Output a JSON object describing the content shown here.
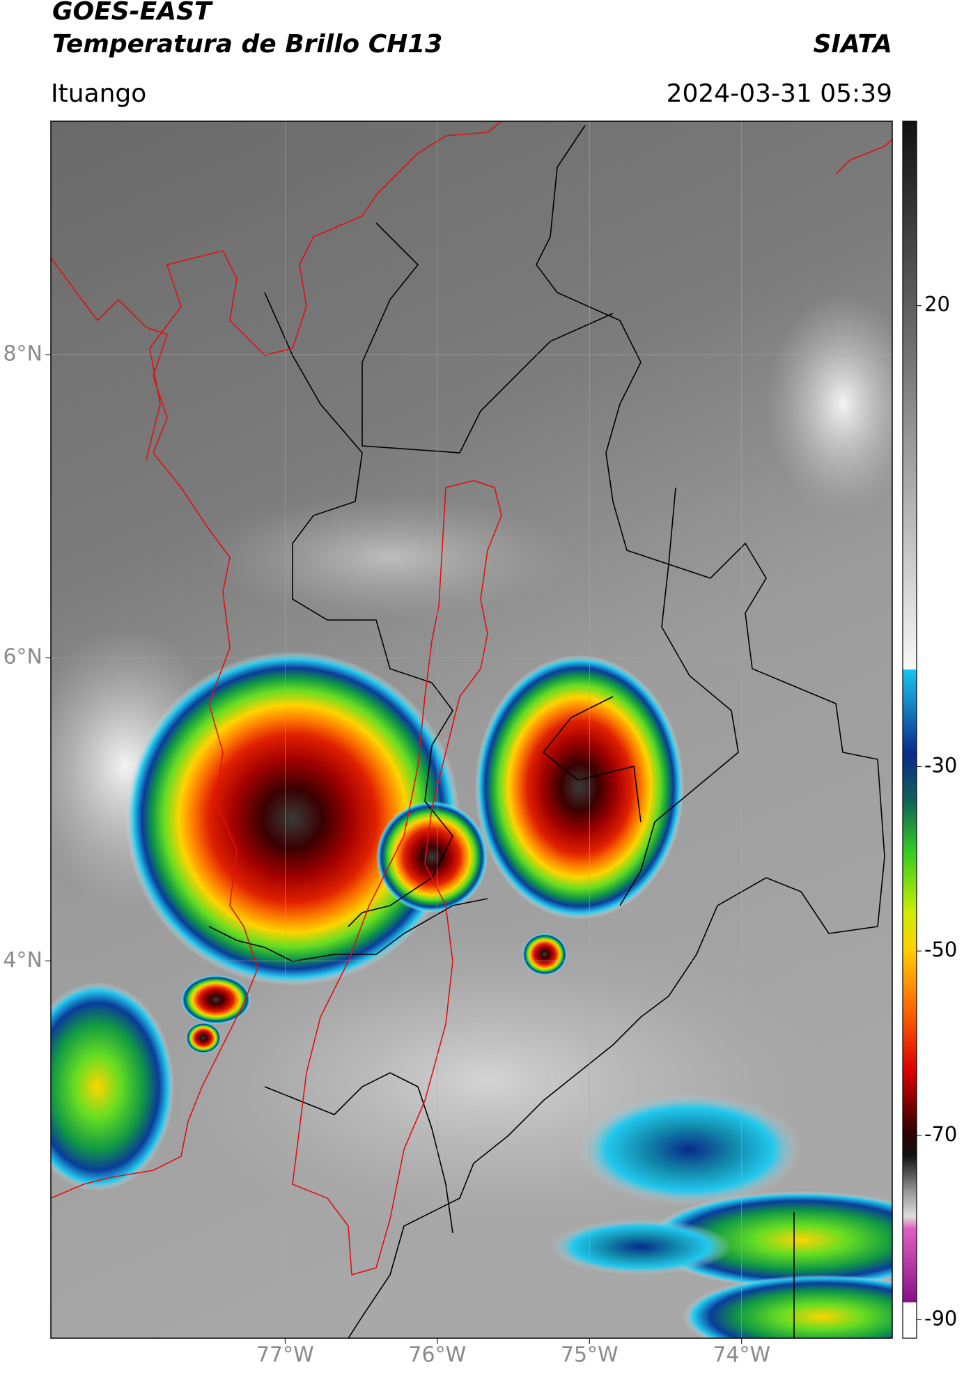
{
  "header": {
    "title_line1": "GOES-EAST",
    "title_line2": "Temperatura de Brillo CH13",
    "source": "SIATA",
    "location": "Ituango",
    "datetime": "2024-03-31 05:39"
  },
  "map": {
    "xlim": [
      -78.54,
      -73.01
    ],
    "ylim": [
      1.51,
      9.54
    ],
    "xticks": [
      {
        "value": -77,
        "label": "77°W"
      },
      {
        "value": -76,
        "label": "76°W"
      },
      {
        "value": -75,
        "label": "75°W"
      },
      {
        "value": -74,
        "label": "74°W"
      }
    ],
    "yticks": [
      {
        "value": 8,
        "label": "8°N"
      },
      {
        "value": 6,
        "label": "6°N"
      },
      {
        "value": 4,
        "label": "4°N"
      }
    ],
    "grid": true
  },
  "colorbar": {
    "clim": [
      -92,
      40
    ],
    "ticks": [
      20,
      -30,
      -50,
      -70,
      -90
    ]
  }
}
